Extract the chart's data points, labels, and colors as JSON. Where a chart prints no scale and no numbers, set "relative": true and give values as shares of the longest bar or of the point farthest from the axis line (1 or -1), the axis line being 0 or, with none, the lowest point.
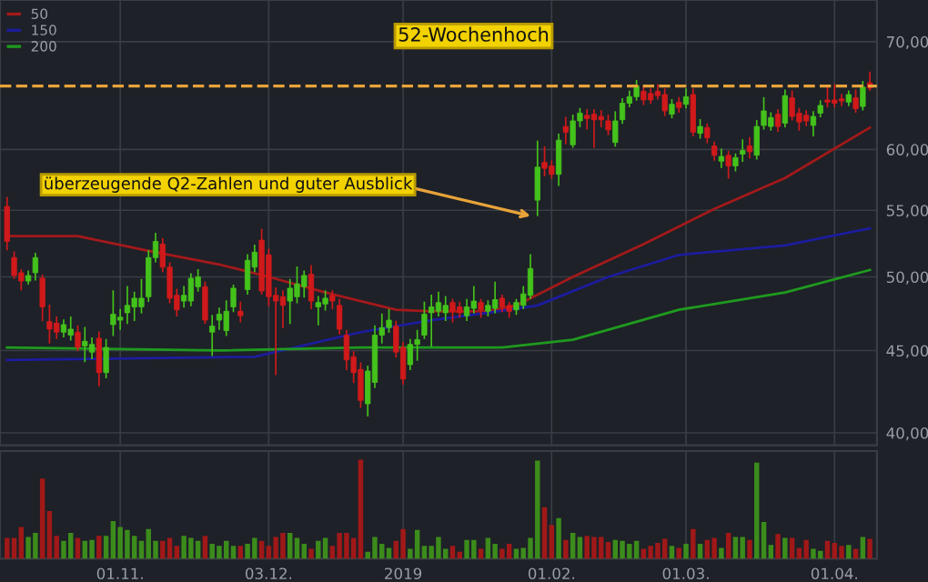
{
  "chart_data": [
    {
      "type": "candlestick",
      "log": "y",
      "ylim": [
        39.3,
        74.3
      ],
      "yticks": [
        {
          "value": 40,
          "label": "40,00"
        },
        {
          "value": 45,
          "label": "45,00"
        },
        {
          "value": 50,
          "label": "50,00"
        },
        {
          "value": 55,
          "label": "55,00"
        },
        {
          "value": 60,
          "label": "60,00"
        },
        {
          "value": 70,
          "label": "70,00"
        }
      ],
      "grid": true,
      "tick_labels": "y",
      "legend": "top left",
      "colors": [
        "#d0191b",
        "#d0191b",
        "#d0191b",
        "#44c21c",
        "#44c21c",
        "#d0191b",
        "#d0191b",
        "#d0191b",
        "#44c21c",
        "#44c21c",
        "#d0191b",
        "#44c21c",
        "#44c21c",
        "#d0191b",
        "#44c21c",
        "#44c21c",
        "#44c21c",
        "#44c21c",
        "#44c21c",
        "#44c21c",
        "#44c21c",
        "#44c21c",
        "#d0191b",
        "#d0191b",
        "#d0191b",
        "#44c21c",
        "#44c21c",
        "#44c21c",
        "#d0191b",
        "#44c21c",
        "#44c21c",
        "#44c21c",
        "#44c21c",
        "#d0191b",
        "#44c21c",
        "#44c21c",
        "#d0191b",
        "#d0191b",
        "#d0191b",
        "#d0191b",
        "#44c21c",
        "#44c21c",
        "#44c21c",
        "#d0191b",
        "#44c21c",
        "#44c21c",
        "#d0191b",
        "#d0191b",
        "#d0191b",
        "#d0191b",
        "#d0191b",
        "#44c21c",
        "#44c21c",
        "#44c21c",
        "#44c21c",
        "#d0191b",
        "#d0191b",
        "#44c21c",
        "#44c21c",
        "#44c21c",
        "#44c21c",
        "#44c21c",
        "#44c21c",
        "#d0191b",
        "#d0191b",
        "#44c21c",
        "#44c21c",
        "#d0191b",
        "#44c21c",
        "#44c21c",
        "#d0191b",
        "#d0191b",
        "#44c21c",
        "#44c21c",
        "#44c21c",
        "#44c21c",
        "#d0191b",
        "#d0191b",
        "#44c21c",
        "#d0191b",
        "#44c21c",
        "#44c21c",
        "#d0191b",
        "#d0191b",
        "#d0191b",
        "#d0191b",
        "#44c21c",
        "#44c21c",
        "#44c21c",
        "#44c21c",
        "#d0191b",
        "#d0191b",
        "#d0191b",
        "#d0191b",
        "#44c21c",
        "#d0191b",
        "#44c21c",
        "#d0191b",
        "#44c21c",
        "#d0191b",
        "#d0191b",
        "#44c21c",
        "#d0191b",
        "#44c21c",
        "#44c21c",
        "#d0191b",
        "#44c21c",
        "#44c21c",
        "#44c21c",
        "#d0191b",
        "#44c21c",
        "#d0191b",
        "#d0191b",
        "#d0191b",
        "#44c21c",
        "#44c21c",
        "#d0191b",
        "#d0191b",
        "#d0191b",
        "#44c21c",
        "#d0191b",
        "#44c21c",
        "#d0191b"
      ],
      "categories": [
        null,
        null,
        null,
        null,
        null,
        null,
        null,
        null,
        null,
        null,
        null,
        null,
        null,
        null,
        null,
        null,
        "01.11.",
        null,
        null,
        null,
        null,
        null,
        null,
        null,
        null,
        null,
        null,
        null,
        null,
        null,
        null,
        null,
        null,
        null,
        null,
        null,
        null,
        "03.12.",
        null,
        null,
        null,
        null,
        null,
        null,
        null,
        null,
        null,
        null,
        null,
        null,
        null,
        null,
        null,
        null,
        null,
        null,
        "2019",
        null,
        null,
        null,
        null,
        null,
        null,
        null,
        null,
        null,
        null,
        null,
        null,
        null,
        null,
        null,
        null,
        null,
        null,
        null,
        null,
        "01.02.",
        null,
        null,
        null,
        null,
        null,
        null,
        null,
        null,
        null,
        null,
        null,
        null,
        null,
        null,
        null,
        null,
        null,
        null,
        "01.03.",
        null,
        null,
        null,
        null,
        null,
        null,
        null,
        null,
        null,
        null,
        null,
        null,
        null,
        null,
        null,
        null,
        null,
        null,
        null,
        null,
        "01.04.",
        null,
        null,
        null,
        null,
        null
      ],
      "ohlc": [
        [
          55.3,
          56,
          52,
          52.6
        ],
        [
          51.4,
          51.8,
          49.9,
          50.1
        ],
        [
          50.3,
          50.5,
          49.1,
          49.7
        ],
        [
          49.7,
          50.4,
          49.5,
          50.1
        ],
        [
          50.3,
          51.7,
          49.8,
          51.4
        ],
        [
          49.9,
          50.1,
          47,
          47.9
        ],
        [
          46.9,
          48,
          45.5,
          46.4
        ],
        [
          46.8,
          47.2,
          45.8,
          46.2
        ],
        [
          46.2,
          47,
          45.9,
          46.7
        ],
        [
          46,
          47.2,
          45.7,
          46.4
        ],
        [
          46.2,
          46.6,
          45,
          45.2
        ],
        [
          45.3,
          46.5,
          44.3,
          45.6
        ],
        [
          44.9,
          45.8,
          44.5,
          45.4
        ],
        [
          45.8,
          46.2,
          42.8,
          43.6
        ],
        [
          43.6,
          45.7,
          43.3,
          45.2
        ],
        [
          46.7,
          49,
          46,
          47.4
        ],
        [
          47,
          47.7,
          46.4,
          47.2
        ],
        [
          47.5,
          49.3,
          46.8,
          48
        ],
        [
          47.9,
          48.9,
          47,
          48.5
        ],
        [
          47.9,
          49.8,
          47.5,
          48.5
        ],
        [
          48.6,
          51.9,
          48.3,
          51.4
        ],
        [
          51.4,
          53.2,
          51.1,
          52.6
        ],
        [
          52.4,
          52.8,
          50.4,
          50.7
        ],
        [
          50.7,
          51,
          48.2,
          48.5
        ],
        [
          48.7,
          49.1,
          47.3,
          47.7
        ],
        [
          48.3,
          49.3,
          47.9,
          48.7
        ],
        [
          48.3,
          50.2,
          48,
          49.9
        ],
        [
          49.3,
          50.5,
          49,
          50
        ],
        [
          49.3,
          49.6,
          46.8,
          47
        ],
        [
          46.2,
          47.3,
          44.7,
          46.6
        ],
        [
          47,
          47.8,
          46.4,
          47.4
        ],
        [
          46.3,
          48.3,
          46,
          47.6
        ],
        [
          47.9,
          49.4,
          47.6,
          49.2
        ],
        [
          47.6,
          48.2,
          46.9,
          47.3
        ],
        [
          49.1,
          51.6,
          48.8,
          51.2
        ],
        [
          50.7,
          52.3,
          50.4,
          51.8
        ],
        [
          52.7,
          53.5,
          48.8,
          49
        ],
        [
          51.6,
          52,
          48,
          48.6
        ],
        [
          48.7,
          49.2,
          43.5,
          48.3
        ],
        [
          48.6,
          49,
          46.5,
          48
        ],
        [
          48.3,
          49.8,
          46.8,
          49.2
        ],
        [
          48.6,
          50.7,
          48.2,
          49.5
        ],
        [
          49.3,
          50.4,
          48.6,
          50.1
        ],
        [
          50.2,
          50.8,
          47.8,
          48.3
        ],
        [
          47.9,
          48.6,
          46.7,
          48.2
        ],
        [
          48.1,
          49,
          47.7,
          48.5
        ],
        [
          48.7,
          49,
          47.8,
          48.3
        ],
        [
          48,
          48.4,
          46.1,
          46.4
        ],
        [
          46,
          46.3,
          43.8,
          44.4
        ],
        [
          44.6,
          44.9,
          43,
          43.6
        ],
        [
          43.8,
          44.2,
          41.5,
          41.9
        ],
        [
          41.7,
          44,
          41,
          43.7
        ],
        [
          43,
          46.6,
          42.7,
          46
        ],
        [
          46,
          47.4,
          45.5,
          46.5
        ],
        [
          46.5,
          47.7,
          46.2,
          47
        ],
        [
          46.6,
          46.9,
          44.6,
          44.9
        ],
        [
          45.2,
          45.5,
          42.9,
          43.2
        ],
        [
          44.1,
          45.7,
          43.8,
          45.4
        ],
        [
          45.4,
          46.3,
          44.4,
          45.7
        ],
        [
          46,
          48.2,
          45.8,
          47.4
        ],
        [
          47.5,
          48.7,
          45.3,
          47.9
        ],
        [
          47.6,
          48.9,
          47.3,
          48.2
        ],
        [
          47.5,
          48.6,
          47,
          48
        ],
        [
          48.2,
          48.4,
          46.9,
          47.6
        ],
        [
          47.9,
          48.2,
          47.2,
          47.5
        ],
        [
          47.3,
          48.4,
          47,
          47.9
        ],
        [
          47.8,
          49.3,
          47.5,
          48.3
        ],
        [
          48.2,
          48.4,
          47.2,
          47.7
        ],
        [
          47.6,
          48.3,
          47.3,
          48
        ],
        [
          47.8,
          49.6,
          47.5,
          48.4
        ],
        [
          48.5,
          48.7,
          47.6,
          47.9
        ],
        [
          48,
          48.2,
          47.2,
          47.6
        ],
        [
          47.7,
          48.4,
          47.4,
          48.2
        ],
        [
          48,
          49.3,
          47.8,
          48.8
        ],
        [
          48.7,
          51.6,
          48.5,
          50.6
        ],
        [
          55.8,
          60.7,
          54.6,
          58.5
        ],
        [
          58.9,
          60.2,
          57.8,
          58.4
        ],
        [
          58.6,
          59,
          57.6,
          57.9
        ],
        [
          57.9,
          61.3,
          57,
          60.8
        ],
        [
          62,
          62.8,
          60.5,
          61.5
        ],
        [
          60.4,
          63,
          60.2,
          62.5
        ],
        [
          62.5,
          63.6,
          62,
          63.2
        ],
        [
          63,
          63.5,
          61.8,
          62.7
        ],
        [
          63.1,
          63.5,
          60.2,
          62.6
        ],
        [
          62.9,
          63.4,
          62,
          62.6
        ],
        [
          62.5,
          63,
          61.3,
          61.7
        ],
        [
          60.6,
          63.3,
          60.3,
          62.5
        ],
        [
          62.6,
          64.5,
          62.3,
          64.1
        ],
        [
          64.1,
          65.2,
          63.8,
          64.7
        ],
        [
          64.7,
          66.2,
          64.4,
          65.7
        ],
        [
          65.2,
          65.6,
          64,
          64.4
        ],
        [
          65,
          65.4,
          64.1,
          64.4
        ],
        [
          65.2,
          65.8,
          64.5,
          64.8
        ],
        [
          64.9,
          65.4,
          63,
          63.4
        ],
        [
          63.1,
          64.4,
          62.8,
          64
        ],
        [
          64.2,
          64.6,
          63.3,
          63.7
        ],
        [
          64,
          65.4,
          63.7,
          64.7
        ],
        [
          64.9,
          65.4,
          61.2,
          61.5
        ],
        [
          61.4,
          62.6,
          61,
          62
        ],
        [
          61.9,
          62.2,
          60.6,
          61
        ],
        [
          60.3,
          60.6,
          59.1,
          59.5
        ],
        [
          59,
          60,
          58.5,
          59.4
        ],
        [
          59.5,
          59.8,
          57.6,
          58.6
        ],
        [
          58.6,
          59.6,
          58.2,
          59.3
        ],
        [
          59.6,
          60.8,
          59,
          59.9
        ],
        [
          60.3,
          61,
          59.3,
          59.8
        ],
        [
          59.5,
          62.5,
          59.2,
          62
        ],
        [
          62.1,
          64.6,
          61.8,
          63.4
        ],
        [
          62,
          63.2,
          61.7,
          62.8
        ],
        [
          63.1,
          63.5,
          61.6,
          62
        ],
        [
          62.3,
          65.3,
          62,
          64.8
        ],
        [
          64.6,
          65.2,
          62.6,
          62.9
        ],
        [
          63.2,
          63.6,
          61.7,
          62.4
        ],
        [
          63,
          63.4,
          62.1,
          62.5
        ],
        [
          62.1,
          63.3,
          61.2,
          62.9
        ],
        [
          63.2,
          64.3,
          62.9,
          63.9
        ],
        [
          64.4,
          65.6,
          63.8,
          64.2
        ],
        [
          64.4,
          65.8,
          63.8,
          64.1
        ],
        [
          64.5,
          64.9,
          63.9,
          64.3
        ],
        [
          64.2,
          65.2,
          63.9,
          64.9
        ],
        [
          64.6,
          65.3,
          63.3,
          63.6
        ],
        [
          63.8,
          66.1,
          63.5,
          65.6
        ],
        [
          66,
          67,
          65.3,
          65.5
        ]
      ],
      "series": [
        {
          "type": "line",
          "name": "50",
          "color": "#a3191b",
          "values": [
            53,
            null,
            null,
            null,
            null,
            null,
            null,
            null,
            null,
            null,
            53,
            null,
            null,
            null,
            null,
            null,
            null,
            null,
            null,
            null,
            51.9,
            null,
            null,
            null,
            null,
            null,
            null,
            null,
            null,
            null,
            50.9,
            null,
            null,
            null,
            null,
            null,
            null,
            50,
            null,
            null,
            null,
            null,
            null,
            null,
            null,
            48.9,
            null,
            null,
            null,
            null,
            48.3,
            null,
            null,
            null,
            null,
            47.7,
            null,
            null,
            null,
            null,
            47.6,
            null,
            null,
            null,
            null,
            null,
            null,
            null,
            47.6,
            null,
            null,
            null,
            48,
            null,
            null,
            null,
            null,
            null,
            null,
            null,
            50,
            null,
            null,
            null,
            null,
            null,
            null,
            null,
            null,
            null,
            52.4,
            null,
            null,
            null,
            null,
            null,
            null,
            null,
            null,
            null,
            55.1,
            null,
            null,
            null,
            null,
            null,
            null,
            null,
            null,
            null,
            57.6,
            null,
            null,
            null,
            null,
            null,
            null,
            null,
            null,
            null,
            null,
            null,
            61.9
          ]
        },
        {
          "type": "line",
          "name": "150",
          "color": "#1c1c9e",
          "values": [
            44.4,
            null,
            null,
            null,
            null,
            null,
            null,
            null,
            null,
            null,
            null,
            null,
            null,
            null,
            null,
            null,
            null,
            null,
            null,
            null,
            null,
            null,
            null,
            null,
            null,
            null,
            null,
            null,
            null,
            null,
            null,
            null,
            null,
            null,
            null,
            44.6,
            null,
            null,
            null,
            null,
            null,
            null,
            null,
            null,
            null,
            null,
            null,
            null,
            null,
            null,
            46.2,
            null,
            null,
            null,
            null,
            null,
            null,
            null,
            null,
            null,
            47,
            null,
            null,
            null,
            null,
            null,
            null,
            null,
            47.5,
            null,
            null,
            null,
            null,
            null,
            null,
            48,
            null,
            null,
            null,
            null,
            null,
            null,
            null,
            null,
            null,
            50,
            null,
            null,
            null,
            null,
            null,
            null,
            null,
            null,
            null,
            51.6,
            null,
            null,
            null,
            null,
            null,
            null,
            null,
            null,
            null,
            null,
            null,
            null,
            null,
            null,
            52.3,
            null,
            null,
            null,
            null,
            null,
            null,
            null,
            null,
            null,
            null,
            null,
            53.6
          ]
        },
        {
          "type": "line",
          "name": "200",
          "color": "#1f9a1f",
          "values": [
            45.2,
            null,
            null,
            null,
            null,
            null,
            null,
            null,
            null,
            null,
            null,
            null,
            null,
            null,
            null,
            null,
            null,
            null,
            null,
            null,
            null,
            null,
            null,
            null,
            null,
            null,
            null,
            null,
            null,
            null,
            45,
            null,
            null,
            null,
            null,
            null,
            null,
            null,
            null,
            null,
            null,
            null,
            null,
            null,
            null,
            null,
            null,
            null,
            null,
            null,
            45.2,
            null,
            null,
            null,
            null,
            null,
            null,
            null,
            null,
            null,
            null,
            null,
            null,
            null,
            null,
            null,
            null,
            null,
            null,
            null,
            45.2,
            null,
            null,
            null,
            null,
            null,
            null,
            null,
            null,
            null,
            45.7,
            null,
            null,
            null,
            null,
            null,
            null,
            null,
            null,
            null,
            null,
            null,
            null,
            null,
            null,
            47.7,
            null,
            null,
            null,
            null,
            null,
            null,
            null,
            null,
            null,
            null,
            null,
            null,
            null,
            null,
            48.9,
            null,
            null,
            null,
            null,
            null,
            null,
            null,
            null,
            null,
            null,
            null,
            50.5
          ]
        }
      ],
      "ref_lines": [
        {
          "axis": "y",
          "value": 65.7,
          "label": "52-Wochenhoch",
          "color": "#e8a33a",
          "line_style": "dashed"
        }
      ],
      "annotations": [
        "überzeugende Q2-Zahlen und guter Ausblick"
      ]
    },
    {
      "type": "bar",
      "relative": true,
      "tick_labels": "x",
      "grid": "x",
      "categories": [
        null,
        null,
        null,
        null,
        null,
        null,
        null,
        null,
        null,
        null,
        null,
        null,
        null,
        null,
        null,
        null,
        "01.11.",
        null,
        null,
        null,
        null,
        null,
        null,
        null,
        null,
        null,
        null,
        null,
        null,
        null,
        null,
        null,
        null,
        null,
        null,
        null,
        null,
        "03.12.",
        null,
        null,
        null,
        null,
        null,
        null,
        null,
        null,
        null,
        null,
        null,
        null,
        null,
        null,
        null,
        null,
        null,
        null,
        "2019",
        null,
        null,
        null,
        null,
        null,
        null,
        null,
        null,
        null,
        null,
        null,
        null,
        null,
        null,
        null,
        null,
        null,
        null,
        null,
        null,
        "01.02.",
        null,
        null,
        null,
        null,
        null,
        null,
        null,
        null,
        null,
        null,
        null,
        null,
        null,
        null,
        null,
        null,
        null,
        null,
        "01.03.",
        null,
        null,
        null,
        null,
        null,
        null,
        null,
        null,
        null,
        null,
        null,
        null,
        null,
        null,
        null,
        null,
        null,
        null,
        null,
        null,
        "01.04.",
        null,
        null,
        null,
        null,
        null
      ],
      "values": [
        0.21,
        0.21,
        0.32,
        0.22,
        0.26,
        0.81,
        0.48,
        0.23,
        0.18,
        0.26,
        0.21,
        0.18,
        0.19,
        0.23,
        0.23,
        0.38,
        0.32,
        0.29,
        0.23,
        0.18,
        0.3,
        0.18,
        0.18,
        0.21,
        0.13,
        0.23,
        0.21,
        0.18,
        0.23,
        0.15,
        0.13,
        0.18,
        0.13,
        0.13,
        0.15,
        0.21,
        0.18,
        0.13,
        0.22,
        0.26,
        0.26,
        0.21,
        0.15,
        0.1,
        0.18,
        0.21,
        0.13,
        0.26,
        0.26,
        0.21,
        1.0,
        0.07,
        0.22,
        0.15,
        0.11,
        0.18,
        0.3,
        0.1,
        0.29,
        0.13,
        0.13,
        0.22,
        0.1,
        0.13,
        0.07,
        0.19,
        0.19,
        0.1,
        0.21,
        0.15,
        0.1,
        0.15,
        0.1,
        0.11,
        0.21,
        0.99,
        0.52,
        0.34,
        0.41,
        0.19,
        0.26,
        0.22,
        0.23,
        0.22,
        0.22,
        0.17,
        0.19,
        0.18,
        0.15,
        0.18,
        0.1,
        0.13,
        0.16,
        0.2,
        0.13,
        0.11,
        0.15,
        0.3,
        0.15,
        0.19,
        0.21,
        0.11,
        0.26,
        0.22,
        0.22,
        0.19,
        0.97,
        0.37,
        0.14,
        0.25,
        0.21,
        0.21,
        0.11,
        0.19,
        0.1,
        0.08,
        0.18,
        0.16,
        0.13,
        0.14,
        0.1,
        0.22,
        0.2
      ],
      "colors": [
        "#a01818",
        "#a01818",
        "#a01818",
        "#3c8c1c",
        "#3c8c1c",
        "#a01818",
        "#a01818",
        "#a01818",
        "#3c8c1c",
        "#3c8c1c",
        "#a01818",
        "#3c8c1c",
        "#3c8c1c",
        "#a01818",
        "#3c8c1c",
        "#3c8c1c",
        "#3c8c1c",
        "#3c8c1c",
        "#3c8c1c",
        "#3c8c1c",
        "#3c8c1c",
        "#3c8c1c",
        "#a01818",
        "#a01818",
        "#a01818",
        "#3c8c1c",
        "#3c8c1c",
        "#3c8c1c",
        "#a01818",
        "#3c8c1c",
        "#3c8c1c",
        "#3c8c1c",
        "#3c8c1c",
        "#a01818",
        "#3c8c1c",
        "#3c8c1c",
        "#a01818",
        "#a01818",
        "#a01818",
        "#a01818",
        "#3c8c1c",
        "#3c8c1c",
        "#3c8c1c",
        "#a01818",
        "#3c8c1c",
        "#3c8c1c",
        "#a01818",
        "#a01818",
        "#a01818",
        "#a01818",
        "#a01818",
        "#3c8c1c",
        "#3c8c1c",
        "#3c8c1c",
        "#3c8c1c",
        "#a01818",
        "#a01818",
        "#3c8c1c",
        "#3c8c1c",
        "#3c8c1c",
        "#3c8c1c",
        "#3c8c1c",
        "#3c8c1c",
        "#a01818",
        "#a01818",
        "#3c8c1c",
        "#3c8c1c",
        "#a01818",
        "#3c8c1c",
        "#3c8c1c",
        "#a01818",
        "#a01818",
        "#3c8c1c",
        "#3c8c1c",
        "#3c8c1c",
        "#3c8c1c",
        "#a01818",
        "#a01818",
        "#3c8c1c",
        "#a01818",
        "#3c8c1c",
        "#3c8c1c",
        "#a01818",
        "#a01818",
        "#a01818",
        "#a01818",
        "#3c8c1c",
        "#3c8c1c",
        "#3c8c1c",
        "#3c8c1c",
        "#a01818",
        "#a01818",
        "#a01818",
        "#a01818",
        "#3c8c1c",
        "#a01818",
        "#3c8c1c",
        "#a01818",
        "#3c8c1c",
        "#a01818",
        "#a01818",
        "#3c8c1c",
        "#a01818",
        "#3c8c1c",
        "#3c8c1c",
        "#a01818",
        "#3c8c1c",
        "#3c8c1c",
        "#3c8c1c",
        "#a01818",
        "#3c8c1c",
        "#a01818",
        "#a01818",
        "#a01818",
        "#3c8c1c",
        "#3c8c1c",
        "#a01818",
        "#a01818",
        "#a01818",
        "#3c8c1c",
        "#a01818",
        "#3c8c1c",
        "#a01818"
      ]
    }
  ]
}
